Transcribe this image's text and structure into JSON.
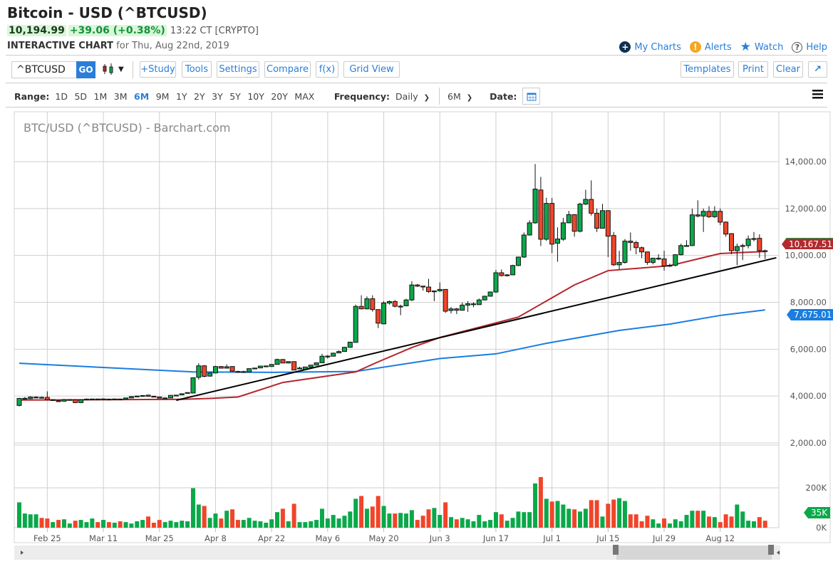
{
  "header": {
    "title": "Bitcoin - USD (^BTCUSD)",
    "last": "10,194.99",
    "change": "+39.06 (+0.38%)",
    "time": "13:22 CT [CRYPTO]",
    "subtitle_bold": "INTERACTIVE CHART",
    "subtitle_rest": "for Thu, Aug 22nd, 2019",
    "links": [
      {
        "label": "My Charts",
        "icon": "plus-circle-icon"
      },
      {
        "label": "Alerts",
        "icon": "alert-icon"
      },
      {
        "label": "Watch",
        "icon": "star-icon"
      },
      {
        "label": "Help",
        "icon": "help-icon"
      }
    ]
  },
  "toolbar": {
    "symbol_value": "^BTCUSD",
    "go": "GO",
    "chart_type_icon": "candlestick-icon",
    "buttons": [
      "+Study",
      "Tools",
      "Settings",
      "Compare",
      "f(x)",
      "Grid View"
    ],
    "right_buttons": [
      "Templates",
      "Print",
      "Clear"
    ],
    "expand_icon": "expand-arrow-icon"
  },
  "rangebar": {
    "range_label": "Range:",
    "ranges": [
      "1D",
      "5D",
      "1M",
      "3M",
      "6M",
      "9M",
      "1Y",
      "2Y",
      "3Y",
      "5Y",
      "10Y",
      "20Y",
      "MAX"
    ],
    "active_range": "6M",
    "frequency_label": "Frequency:",
    "frequency": "Daily",
    "period": "6M",
    "date_label": "Date:",
    "calendar_icon": "calendar-icon",
    "menu_icon": "hamburger-menu-icon"
  },
  "colors": {
    "up": "#0aa84a",
    "down": "#f0452a",
    "ma50": "#b5262c",
    "ma200": "#1a7de0",
    "trendline": "#000000",
    "accent": "#2a7ed8"
  },
  "chart_data": {
    "type": "candlestick",
    "title": "BTC/USD (^BTCUSD) - Barchart.com",
    "y_ticks": [
      "14,000.00",
      "12,000.00",
      "10,000.00",
      "8,000.00",
      "6,000.00",
      "4,000.00",
      "2,000.00"
    ],
    "ylim": [
      2000,
      14000
    ],
    "volume_ticks": [
      "200K",
      "0K"
    ],
    "volume_ylim": [
      0,
      200
    ],
    "grid": true,
    "x_ticks": [
      {
        "label": "Feb 25",
        "date": "2019-02-25"
      },
      {
        "label": "Mar 11",
        "date": "2019-03-11"
      },
      {
        "label": "Mar 25",
        "date": "2019-03-25"
      },
      {
        "label": "Apr 8",
        "date": "2019-04-08"
      },
      {
        "label": "Apr 22",
        "date": "2019-04-22"
      },
      {
        "label": "May 6",
        "date": "2019-05-06"
      },
      {
        "label": "May 20",
        "date": "2019-05-20"
      },
      {
        "label": "Jun 3",
        "date": "2019-06-03"
      },
      {
        "label": "Jun 17",
        "date": "2019-06-17"
      },
      {
        "label": "Jul 1",
        "date": "2019-07-01"
      },
      {
        "label": "Jul 15",
        "date": "2019-07-15"
      },
      {
        "label": "Jul 29",
        "date": "2019-07-29"
      },
      {
        "label": "Aug 12",
        "date": "2019-08-12"
      }
    ],
    "candle_fields": [
      "date",
      "open",
      "high",
      "low",
      "close",
      "volume_k"
    ],
    "candles": [
      [
        "2019-02-18",
        3600,
        3920,
        3560,
        3900,
        127
      ],
      [
        "2019-02-19",
        3900,
        3960,
        3880,
        3905,
        71
      ],
      [
        "2019-02-20",
        3890,
        3990,
        3870,
        3960,
        67
      ],
      [
        "2019-02-21",
        3950,
        3990,
        3920,
        3955,
        67
      ],
      [
        "2019-02-22",
        3945,
        3980,
        3910,
        3940,
        49
      ],
      [
        "2019-02-25",
        3940,
        4200,
        3820,
        3840,
        46
      ],
      [
        "2019-02-26",
        3840,
        3870,
        3810,
        3845,
        28
      ],
      [
        "2019-02-27",
        3800,
        3830,
        3760,
        3790,
        39
      ],
      [
        "2019-02-28",
        3780,
        3880,
        3760,
        3850,
        42
      ],
      [
        "2019-03-01",
        3850,
        3870,
        3830,
        3852,
        21
      ],
      [
        "2019-03-04",
        3840,
        3860,
        3700,
        3720,
        35
      ],
      [
        "2019-03-05",
        3720,
        3860,
        3700,
        3840,
        39
      ],
      [
        "2019-03-06",
        3865,
        3900,
        3850,
        3870,
        28
      ],
      [
        "2019-03-07",
        3870,
        3890,
        3850,
        3875,
        46
      ],
      [
        "2019-03-08",
        3875,
        3890,
        3860,
        3872,
        28
      ],
      [
        "2019-03-11",
        3870,
        3900,
        3840,
        3878,
        39
      ],
      [
        "2019-03-12",
        3870,
        3890,
        3850,
        3868,
        28
      ],
      [
        "2019-03-13",
        3875,
        3890,
        3860,
        3876,
        25
      ],
      [
        "2019-03-14",
        3874,
        3890,
        3860,
        3873,
        32
      ],
      [
        "2019-03-15",
        3870,
        3930,
        3860,
        3920,
        28
      ],
      [
        "2019-03-18",
        3920,
        4000,
        3910,
        3980,
        21
      ],
      [
        "2019-03-19",
        3995,
        4020,
        3985,
        4000,
        32
      ],
      [
        "2019-03-20",
        4015,
        4040,
        4005,
        4020,
        39
      ],
      [
        "2019-03-21",
        4040,
        4060,
        3980,
        3990,
        56
      ],
      [
        "2019-03-22",
        3992,
        4010,
        3980,
        3990,
        25
      ],
      [
        "2019-03-25",
        3960,
        3980,
        3900,
        3910,
        39
      ],
      [
        "2019-03-26",
        3915,
        3935,
        3910,
        3920,
        28
      ],
      [
        "2019-03-27",
        3920,
        4040,
        3910,
        4030,
        35
      ],
      [
        "2019-03-28",
        4035,
        4050,
        4030,
        4040,
        28
      ],
      [
        "2019-03-29",
        4050,
        4110,
        4040,
        4100,
        35
      ],
      [
        "2019-04-01",
        4130,
        4160,
        4110,
        4150,
        32
      ],
      [
        "2019-04-02",
        4130,
        4800,
        4120,
        4780,
        198
      ],
      [
        "2019-04-03",
        4800,
        5400,
        4700,
        5290,
        116
      ],
      [
        "2019-04-04",
        5290,
        5320,
        4800,
        4840,
        109
      ],
      [
        "2019-04-05",
        4850,
        5010,
        4830,
        4985,
        49
      ],
      [
        "2019-04-08",
        4985,
        5290,
        4970,
        5260,
        71
      ],
      [
        "2019-04-09",
        5260,
        5280,
        5180,
        5190,
        46
      ],
      [
        "2019-04-10",
        5190,
        5350,
        5180,
        5250,
        85
      ],
      [
        "2019-04-11",
        5260,
        5280,
        5040,
        5060,
        92
      ],
      [
        "2019-04-12",
        5050,
        5080,
        4990,
        5040,
        39
      ],
      [
        "2019-04-15",
        5040,
        5080,
        5000,
        5045,
        39
      ],
      [
        "2019-04-16",
        5030,
        5180,
        5020,
        5170,
        49
      ],
      [
        "2019-04-17",
        5190,
        5200,
        5180,
        5195,
        35
      ],
      [
        "2019-04-18",
        5200,
        5290,
        5190,
        5280,
        32
      ],
      [
        "2019-04-19",
        5280,
        5300,
        5260,
        5285,
        25
      ],
      [
        "2019-04-22",
        5260,
        5360,
        5250,
        5350,
        42
      ],
      [
        "2019-04-23",
        5350,
        5600,
        5340,
        5560,
        78
      ],
      [
        "2019-04-24",
        5560,
        5580,
        5400,
        5410,
        95
      ],
      [
        "2019-04-25",
        5410,
        5480,
        5400,
        5470,
        32
      ],
      [
        "2019-04-26",
        5470,
        5480,
        5100,
        5110,
        120
      ],
      [
        "2019-04-29",
        5190,
        5250,
        5150,
        5195,
        28
      ],
      [
        "2019-04-30",
        5140,
        5250,
        5130,
        5240,
        28
      ],
      [
        "2019-05-01",
        5230,
        5330,
        5220,
        5320,
        32
      ],
      [
        "2019-05-02",
        5320,
        5430,
        5310,
        5420,
        39
      ],
      [
        "2019-05-03",
        5420,
        5800,
        5410,
        5700,
        95
      ],
      [
        "2019-05-06",
        5700,
        5750,
        5600,
        5705,
        46
      ],
      [
        "2019-05-07",
        5700,
        5850,
        5690,
        5830,
        64
      ],
      [
        "2019-05-08",
        5840,
        5950,
        5830,
        5900,
        46
      ],
      [
        "2019-05-09",
        5900,
        6100,
        5890,
        6080,
        60
      ],
      [
        "2019-05-10",
        6080,
        6320,
        6060,
        6300,
        81
      ],
      [
        "2019-05-13",
        6290,
        7900,
        6280,
        7825,
        145
      ],
      [
        "2019-05-14",
        7825,
        8300,
        7700,
        7720,
        159
      ],
      [
        "2019-05-15",
        7720,
        8250,
        7700,
        8150,
        95
      ],
      [
        "2019-05-16",
        8150,
        8300,
        7600,
        7690,
        106
      ],
      [
        "2019-05-17",
        7690,
        7700,
        6900,
        7110,
        159
      ],
      [
        "2019-05-20",
        7080,
        8050,
        7070,
        7970,
        109
      ],
      [
        "2019-05-21",
        7970,
        8080,
        7900,
        8030,
        71
      ],
      [
        "2019-05-22",
        8030,
        8100,
        7780,
        7830,
        71
      ],
      [
        "2019-05-23",
        7830,
        7900,
        7450,
        7835,
        74
      ],
      [
        "2019-05-24",
        7850,
        8150,
        7830,
        8100,
        71
      ],
      [
        "2019-05-27",
        8100,
        8900,
        8050,
        8740,
        88
      ],
      [
        "2019-05-28",
        8740,
        8780,
        8650,
        8690,
        39
      ],
      [
        "2019-05-29",
        8690,
        8700,
        8500,
        8680,
        60
      ],
      [
        "2019-05-30",
        8650,
        9000,
        8400,
        8460,
        92
      ],
      [
        "2019-05-31",
        8480,
        8500,
        8050,
        8485,
        99
      ],
      [
        "2019-06-03",
        8490,
        8850,
        8450,
        8550,
        64
      ],
      [
        "2019-06-04",
        8550,
        8560,
        7550,
        7620,
        127
      ],
      [
        "2019-06-05",
        7650,
        7800,
        7520,
        7720,
        53
      ],
      [
        "2019-06-06",
        7720,
        7760,
        7500,
        7660,
        42
      ],
      [
        "2019-06-07",
        7660,
        7990,
        7650,
        7880,
        49
      ],
      [
        "2019-06-10",
        7880,
        8050,
        7590,
        7940,
        42
      ],
      [
        "2019-06-11",
        7930,
        8000,
        7790,
        7935,
        32
      ],
      [
        "2019-06-12",
        7900,
        8160,
        7890,
        8100,
        64
      ],
      [
        "2019-06-13",
        8100,
        8280,
        8080,
        8260,
        32
      ],
      [
        "2019-06-14",
        8260,
        8460,
        8240,
        8440,
        39
      ],
      [
        "2019-06-17",
        8440,
        9380,
        8400,
        9260,
        78
      ],
      [
        "2019-06-18",
        9260,
        9400,
        9100,
        9140,
        67
      ],
      [
        "2019-06-19",
        9140,
        9200,
        9100,
        9170,
        35
      ],
      [
        "2019-06-20",
        9170,
        9600,
        9160,
        9570,
        49
      ],
      [
        "2019-06-21",
        9570,
        9950,
        9540,
        9930,
        81
      ],
      [
        "2019-06-24",
        9930,
        10980,
        9900,
        10870,
        78
      ],
      [
        "2019-06-25",
        10870,
        11500,
        10850,
        11390,
        78
      ],
      [
        "2019-06-26",
        11390,
        13900,
        11350,
        12830,
        222
      ],
      [
        "2019-06-27",
        12790,
        13350,
        10400,
        10690,
        254
      ],
      [
        "2019-06-28",
        10690,
        12460,
        10620,
        12220,
        145
      ],
      [
        "2019-07-01",
        12220,
        12450,
        10100,
        10480,
        131
      ],
      [
        "2019-07-02",
        10520,
        11200,
        9730,
        10700,
        134
      ],
      [
        "2019-07-03",
        10690,
        11600,
        10620,
        11390,
        116
      ],
      [
        "2019-07-04",
        11390,
        11900,
        11370,
        11740,
        95
      ],
      [
        "2019-07-05",
        11740,
        11760,
        10800,
        11030,
        92
      ],
      [
        "2019-07-08",
        11030,
        12250,
        10980,
        12190,
        81
      ],
      [
        "2019-07-09",
        12190,
        12800,
        12150,
        12390,
        95
      ],
      [
        "2019-07-10",
        12390,
        13200,
        11700,
        11800,
        138
      ],
      [
        "2019-07-11",
        11800,
        12000,
        11000,
        11160,
        138
      ],
      [
        "2019-07-12",
        11160,
        12200,
        11150,
        11910,
        56
      ],
      [
        "2019-07-15",
        11910,
        11920,
        9930,
        10820,
        120
      ],
      [
        "2019-07-16",
        10850,
        11000,
        9550,
        9600,
        141
      ],
      [
        "2019-07-17",
        9600,
        10200,
        9400,
        9700,
        148
      ],
      [
        "2019-07-18",
        9700,
        10700,
        9650,
        10610,
        134
      ],
      [
        "2019-07-19",
        10610,
        10980,
        10200,
        10550,
        67
      ],
      [
        "2019-07-22",
        10550,
        10620,
        10050,
        10330,
        67
      ],
      [
        "2019-07-23",
        10330,
        10380,
        9880,
        10150,
        32
      ],
      [
        "2019-07-24",
        10150,
        10160,
        9600,
        9700,
        60
      ],
      [
        "2019-07-25",
        9700,
        9900,
        9620,
        9880,
        42
      ],
      [
        "2019-07-26",
        9870,
        10050,
        9800,
        9880,
        21
      ],
      [
        "2019-07-29",
        9850,
        10200,
        9350,
        9550,
        46
      ],
      [
        "2019-07-30",
        9560,
        9650,
        9500,
        9580,
        21
      ],
      [
        "2019-07-31",
        9580,
        10050,
        9530,
        10030,
        42
      ],
      [
        "2019-08-01",
        10030,
        10500,
        10000,
        10420,
        32
      ],
      [
        "2019-08-02",
        10420,
        10650,
        10380,
        10420,
        64
      ],
      [
        "2019-08-05",
        10420,
        12000,
        10400,
        11730,
        85
      ],
      [
        "2019-08-06",
        11730,
        12350,
        11620,
        11680,
        85
      ],
      [
        "2019-08-07",
        11680,
        12000,
        11000,
        11880,
        85
      ],
      [
        "2019-08-08",
        11880,
        12100,
        11600,
        11650,
        56
      ],
      [
        "2019-08-09",
        11650,
        12100,
        11600,
        11880,
        53
      ],
      [
        "2019-08-12",
        11880,
        12000,
        11300,
        11420,
        28
      ],
      [
        "2019-08-13",
        11420,
        11450,
        10800,
        10910,
        67
      ],
      [
        "2019-08-14",
        10930,
        10950,
        10050,
        10200,
        56
      ],
      [
        "2019-08-15",
        10200,
        10500,
        9580,
        10380,
        116
      ],
      [
        "2019-08-16",
        10420,
        10500,
        9800,
        10420,
        81
      ],
      [
        "2019-08-19",
        10420,
        10850,
        10300,
        10700,
        35
      ],
      [
        "2019-08-20",
        10720,
        11000,
        10600,
        10720,
        32
      ],
      [
        "2019-08-21",
        10730,
        10900,
        9900,
        10200,
        53
      ],
      [
        "2019-08-22",
        10200,
        10250,
        9850,
        10195,
        35
      ]
    ],
    "ma50": [
      [
        "2019-02-18",
        3830
      ],
      [
        "2019-03-29",
        3860
      ],
      [
        "2019-04-05",
        3900
      ],
      [
        "2019-04-12",
        3960
      ],
      [
        "2019-04-24",
        4580
      ],
      [
        "2019-05-13",
        5030
      ],
      [
        "2019-05-17",
        5460
      ],
      [
        "2019-05-27",
        6070
      ],
      [
        "2019-06-03",
        6500
      ],
      [
        "2019-06-21",
        7370
      ],
      [
        "2019-07-05",
        8740
      ],
      [
        "2019-07-15",
        9350
      ],
      [
        "2019-07-30",
        9560
      ],
      [
        "2019-08-12",
        10080
      ],
      [
        "2019-08-22",
        10167.51
      ]
    ],
    "ma200": [
      [
        "2019-02-18",
        5400
      ],
      [
        "2019-04-02",
        5030
      ],
      [
        "2019-04-22",
        5010
      ],
      [
        "2019-05-13",
        5050
      ],
      [
        "2019-06-03",
        5600
      ],
      [
        "2019-06-17",
        5800
      ],
      [
        "2019-06-28",
        6250
      ],
      [
        "2019-07-17",
        6800
      ],
      [
        "2019-07-30",
        7070
      ],
      [
        "2019-08-12",
        7440
      ],
      [
        "2019-08-22",
        7675.01
      ]
    ],
    "trendline": [
      [
        "2019-03-28",
        3820
      ],
      [
        "2019-08-26",
        9900
      ]
    ],
    "last_tags": {
      "ma50": "10,167.51",
      "ma200": "7,675.01",
      "volume": "35K"
    }
  }
}
